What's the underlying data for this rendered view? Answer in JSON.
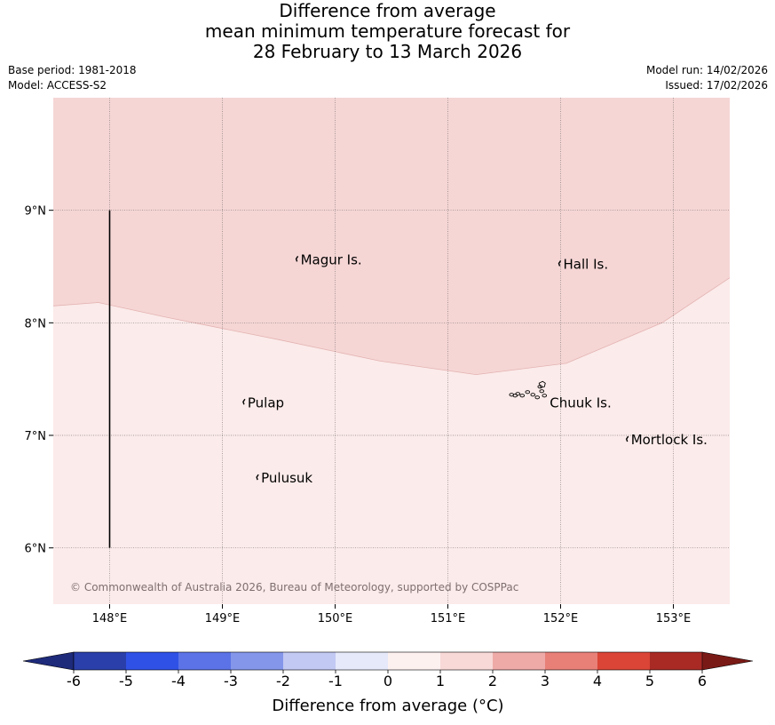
{
  "header": {
    "title_lines": [
      "Difference from average",
      "mean minimum temperature forecast for",
      "28 February to 13 March 2026"
    ],
    "base_period": "Base period: 1981-2018",
    "model": "Model: ACCESS-S2",
    "model_run": "Model run: 14/02/2026",
    "issued": "Issued: 17/02/2026"
  },
  "map": {
    "lon_range": [
      147.5,
      153.5
    ],
    "lat_range": [
      5.5,
      10.0
    ],
    "lon_ticks": [
      {
        "value": 148,
        "label": "148°E"
      },
      {
        "value": 149,
        "label": "149°E"
      },
      {
        "value": 150,
        "label": "150°E"
      },
      {
        "value": 151,
        "label": "151°E"
      },
      {
        "value": 152,
        "label": "152°E"
      },
      {
        "value": 153,
        "label": "153°E"
      }
    ],
    "lat_ticks": [
      {
        "value": 6,
        "label": "6°N"
      },
      {
        "value": 7,
        "label": "7°N"
      },
      {
        "value": 8,
        "label": "8°N"
      },
      {
        "value": 9,
        "label": "9°N"
      }
    ],
    "grid": true,
    "anomaly_regions": [
      {
        "range": "1 to 2",
        "color": "#f5d6d5",
        "position": "north"
      },
      {
        "range": "0 to 1",
        "color": "#fbebea",
        "position": "south"
      }
    ],
    "boundary_line": [
      [
        147.5,
        8.15
      ],
      [
        147.9,
        8.18
      ],
      [
        148.5,
        8.05
      ],
      [
        149.5,
        7.85
      ],
      [
        150.4,
        7.66
      ],
      [
        151.25,
        7.54
      ],
      [
        152.05,
        7.64
      ],
      [
        152.9,
        8.0
      ],
      [
        153.5,
        8.4
      ]
    ],
    "meridian_line": {
      "lon": 148,
      "lat_from": 6.0,
      "lat_to": 9.0
    },
    "places": [
      {
        "name": "Magur Is.",
        "lon": 149.67,
        "lat": 8.56
      },
      {
        "name": "Hall Is.",
        "lon": 152.0,
        "lat": 8.52
      },
      {
        "name": "Pulap",
        "lon": 149.2,
        "lat": 7.29
      },
      {
        "name": "Chuuk Is.",
        "lon": 151.88,
        "lat": 7.29
      },
      {
        "name": "Mortlock Is.",
        "lon": 152.6,
        "lat": 6.96
      },
      {
        "name": "Pulusuk",
        "lon": 149.32,
        "lat": 6.62
      }
    ],
    "copyright": "© Commonwealth of Australia 2026, Bureau of Meteorology, supported by COSPPac"
  },
  "colorbar": {
    "label": "Difference from average (°C)",
    "ticks": [
      "-6",
      "-5",
      "-4",
      "-3",
      "-2",
      "-1",
      "0",
      "1",
      "2",
      "3",
      "4",
      "5",
      "6"
    ],
    "colors": [
      "#2a3faa",
      "#2f51e5",
      "#5b73e6",
      "#8496ea",
      "#c2c9f2",
      "#e6e9fa",
      "#fdf1f0",
      "#f8d9d7",
      "#eeaaa7",
      "#e88078",
      "#da4537",
      "#a92a25"
    ],
    "under_color": "#1e2a7a",
    "over_color": "#7a1a16"
  }
}
